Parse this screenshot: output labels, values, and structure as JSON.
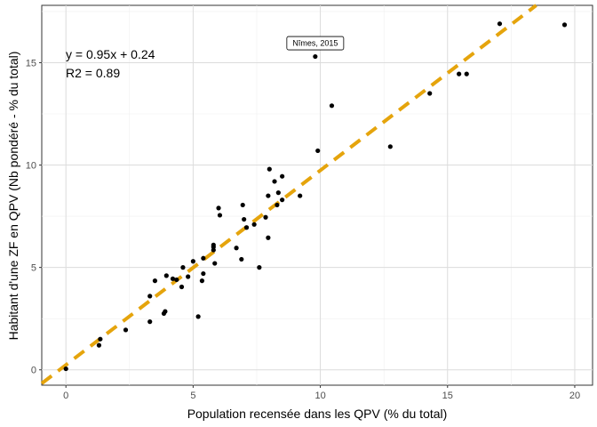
{
  "chart_data": {
    "type": "scatter",
    "title": "",
    "xlabel": "Population recensée dans les QPV (% du total)",
    "ylabel": "Habitant d'une ZF en QPV (Nb pondéré - % du total)",
    "xlim": [
      -0.95,
      20.7
    ],
    "ylim": [
      -0.75,
      17.8
    ],
    "x_ticks": [
      0,
      5,
      10,
      15,
      20
    ],
    "y_ticks": [
      0,
      5,
      10,
      15
    ],
    "grid": true,
    "annotations": {
      "equation": "y = 0.95x + 0.24",
      "r2": "R2 = 0.89",
      "callout": {
        "text": "Nîmes, 2015",
        "x": 9.8,
        "y": 15.3
      }
    },
    "trend_line": {
      "slope": 0.95,
      "intercept": 0.24,
      "color": "#E5A40C"
    },
    "point_color": "#000000",
    "points": [
      [
        0.0,
        0.05
      ],
      [
        1.3,
        1.2
      ],
      [
        1.35,
        1.5
      ],
      [
        2.35,
        1.95
      ],
      [
        3.3,
        2.35
      ],
      [
        3.3,
        3.6
      ],
      [
        3.5,
        4.35
      ],
      [
        3.85,
        2.75
      ],
      [
        3.9,
        2.85
      ],
      [
        3.95,
        4.6
      ],
      [
        4.2,
        4.45
      ],
      [
        4.35,
        4.4
      ],
      [
        4.55,
        4.05
      ],
      [
        4.6,
        5.0
      ],
      [
        4.8,
        4.55
      ],
      [
        5.0,
        5.3
      ],
      [
        5.2,
        2.6
      ],
      [
        5.35,
        4.35
      ],
      [
        5.4,
        4.7
      ],
      [
        5.4,
        5.45
      ],
      [
        5.8,
        5.85
      ],
      [
        5.8,
        6.0
      ],
      [
        5.8,
        6.1
      ],
      [
        5.85,
        5.2
      ],
      [
        6.0,
        7.9
      ],
      [
        6.05,
        7.55
      ],
      [
        6.7,
        5.95
      ],
      [
        6.9,
        5.4
      ],
      [
        6.95,
        8.05
      ],
      [
        7.0,
        7.35
      ],
      [
        7.1,
        6.95
      ],
      [
        7.4,
        7.1
      ],
      [
        7.6,
        5.0
      ],
      [
        7.85,
        7.45
      ],
      [
        7.95,
        6.45
      ],
      [
        7.95,
        8.5
      ],
      [
        8.0,
        9.8
      ],
      [
        8.2,
        9.2
      ],
      [
        8.3,
        8.05
      ],
      [
        8.35,
        8.65
      ],
      [
        8.5,
        9.45
      ],
      [
        8.5,
        8.3
      ],
      [
        9.2,
        8.5
      ],
      [
        9.8,
        15.3
      ],
      [
        9.9,
        10.7
      ],
      [
        10.45,
        12.9
      ],
      [
        12.75,
        10.9
      ],
      [
        14.3,
        13.5
      ],
      [
        15.45,
        14.45
      ],
      [
        15.75,
        14.45
      ],
      [
        17.05,
        16.9
      ],
      [
        19.6,
        16.85
      ]
    ]
  }
}
